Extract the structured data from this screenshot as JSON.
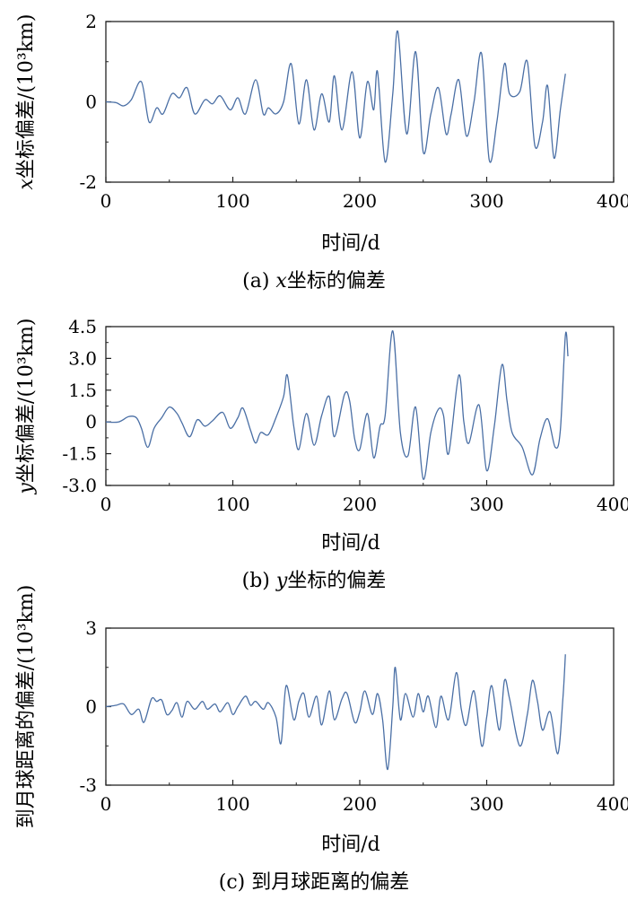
{
  "chart_data": [
    {
      "type": "line",
      "caption": "(a) x坐标的偏差",
      "caption_prefix": "(a) ",
      "caption_var": "x",
      "caption_suffix": "坐标的偏差",
      "xlabel": "时间/d",
      "ylabel": "x坐标偏差/(10³km)",
      "ylabel_var": "x",
      "ylabel_rest": "坐标偏差/(10³km)",
      "xlim": [
        0,
        400
      ],
      "ylim": [
        -2,
        2
      ],
      "xticks": [
        "0",
        "100",
        "200",
        "300",
        "400"
      ],
      "yticks": [
        "-2",
        "0",
        "2"
      ],
      "yticks_values": [
        -2,
        0,
        2
      ],
      "line_color": "#4a6fa5",
      "points": [
        [
          0,
          0
        ],
        [
          8,
          -0.02
        ],
        [
          14,
          -0.1
        ],
        [
          20,
          0.05
        ],
        [
          28,
          0.5
        ],
        [
          34,
          -0.5
        ],
        [
          40,
          -0.15
        ],
        [
          45,
          -0.3
        ],
        [
          52,
          0.2
        ],
        [
          58,
          0.1
        ],
        [
          64,
          0.35
        ],
        [
          70,
          -0.3
        ],
        [
          78,
          0.05
        ],
        [
          84,
          -0.05
        ],
        [
          90,
          0.15
        ],
        [
          98,
          -0.2
        ],
        [
          104,
          0.1
        ],
        [
          110,
          -0.3
        ],
        [
          118,
          0.55
        ],
        [
          124,
          -0.3
        ],
        [
          128,
          -0.15
        ],
        [
          134,
          -0.3
        ],
        [
          140,
          0.0
        ],
        [
          146,
          0.95
        ],
        [
          152,
          -0.55
        ],
        [
          158,
          0.55
        ],
        [
          164,
          -0.7
        ],
        [
          170,
          0.2
        ],
        [
          176,
          -0.5
        ],
        [
          180,
          0.65
        ],
        [
          186,
          -0.7
        ],
        [
          194,
          0.75
        ],
        [
          200,
          -0.9
        ],
        [
          206,
          0.5
        ],
        [
          211,
          -0.2
        ],
        [
          214,
          0.75
        ],
        [
          220,
          -1.5
        ],
        [
          226,
          0.2
        ],
        [
          230,
          1.75
        ],
        [
          237,
          -0.8
        ],
        [
          244,
          1.25
        ],
        [
          250,
          -1.25
        ],
        [
          256,
          -0.3
        ],
        [
          262,
          0.35
        ],
        [
          268,
          -0.8
        ],
        [
          272,
          -0.3
        ],
        [
          278,
          0.55
        ],
        [
          284,
          -0.85
        ],
        [
          290,
          0.0
        ],
        [
          296,
          1.2
        ],
        [
          302,
          -1.45
        ],
        [
          308,
          -0.5
        ],
        [
          314,
          0.95
        ],
        [
          318,
          0.2
        ],
        [
          326,
          0.25
        ],
        [
          332,
          1.0
        ],
        [
          338,
          -1.1
        ],
        [
          344,
          -0.5
        ],
        [
          348,
          0.4
        ],
        [
          353,
          -1.4
        ],
        [
          358,
          -0.2
        ],
        [
          362,
          0.7
        ]
      ]
    },
    {
      "type": "line",
      "caption": "(b) y坐标的偏差",
      "caption_prefix": "(b) ",
      "caption_var": "y",
      "caption_suffix": "坐标的偏差",
      "xlabel": "时间/d",
      "ylabel": "y坐标偏差/(10³km)",
      "ylabel_var": "y",
      "ylabel_rest": "坐标偏差/(10³km)",
      "xlim": [
        0,
        400
      ],
      "ylim": [
        -3.0,
        4.5
      ],
      "xticks": [
        "0",
        "100",
        "200",
        "300",
        "400"
      ],
      "yticks": [
        "-3.0",
        "-1.5",
        "0",
        "1.5",
        "3.0",
        "4.5"
      ],
      "yticks_values": [
        -3.0,
        -1.5,
        0,
        1.5,
        3.0,
        4.5
      ],
      "line_color": "#4a6fa5",
      "points": [
        [
          0,
          0
        ],
        [
          10,
          0
        ],
        [
          18,
          0.25
        ],
        [
          24,
          0.2
        ],
        [
          28,
          -0.3
        ],
        [
          33,
          -1.2
        ],
        [
          38,
          -0.3
        ],
        [
          44,
          0.2
        ],
        [
          50,
          0.7
        ],
        [
          56,
          0.4
        ],
        [
          60,
          -0.05
        ],
        [
          66,
          -0.7
        ],
        [
          72,
          0.1
        ],
        [
          78,
          -0.2
        ],
        [
          84,
          0.05
        ],
        [
          92,
          0.45
        ],
        [
          98,
          -0.3
        ],
        [
          104,
          0.2
        ],
        [
          108,
          0.65
        ],
        [
          114,
          -0.4
        ],
        [
          118,
          -1.0
        ],
        [
          122,
          -0.5
        ],
        [
          128,
          -0.6
        ],
        [
          134,
          0.2
        ],
        [
          140,
          1.2
        ],
        [
          143,
          2.2
        ],
        [
          148,
          -0.2
        ],
        [
          152,
          -1.3
        ],
        [
          158,
          0.4
        ],
        [
          164,
          -1.1
        ],
        [
          170,
          0.3
        ],
        [
          176,
          1.2
        ],
        [
          180,
          -0.7
        ],
        [
          188,
          1.3
        ],
        [
          192,
          1.0
        ],
        [
          196,
          -0.8
        ],
        [
          200,
          -1.3
        ],
        [
          206,
          0.4
        ],
        [
          211,
          -1.7
        ],
        [
          216,
          -0.2
        ],
        [
          220,
          0.3
        ],
        [
          226,
          4.3
        ],
        [
          232,
          -0.5
        ],
        [
          238,
          -1.6
        ],
        [
          244,
          0.7
        ],
        [
          250,
          -2.7
        ],
        [
          256,
          -0.5
        ],
        [
          262,
          0.6
        ],
        [
          266,
          0.3
        ],
        [
          270,
          -1.5
        ],
        [
          278,
          2.2
        ],
        [
          282,
          0.0
        ],
        [
          286,
          -1.0
        ],
        [
          294,
          0.8
        ],
        [
          300,
          -2.3
        ],
        [
          306,
          -0.2
        ],
        [
          312,
          2.7
        ],
        [
          316,
          1.0
        ],
        [
          320,
          -0.5
        ],
        [
          328,
          -1.2
        ],
        [
          336,
          -2.5
        ],
        [
          342,
          -0.8
        ],
        [
          348,
          0.15
        ],
        [
          354,
          -1.2
        ],
        [
          358,
          -0.4
        ],
        [
          362,
          4.1
        ],
        [
          364,
          3.1
        ]
      ]
    },
    {
      "type": "line",
      "caption": "(c) 到月球距离的偏差",
      "caption_prefix": "(c) ",
      "caption_var": "",
      "caption_suffix": "到月球距离的偏差",
      "xlabel": "时间/d",
      "ylabel": "到月球距离的偏差/(10³km)",
      "ylabel_var": "",
      "ylabel_rest": "到月球距离的偏差/(10³km)",
      "xlim": [
        0,
        400
      ],
      "ylim": [
        -3,
        3
      ],
      "xticks": [
        "0",
        "100",
        "200",
        "300",
        "400"
      ],
      "yticks": [
        "-3",
        "0",
        "3"
      ],
      "yticks_values": [
        -3,
        0,
        3
      ],
      "line_color": "#4a6fa5",
      "points": [
        [
          0,
          0
        ],
        [
          8,
          0.05
        ],
        [
          14,
          0.1
        ],
        [
          20,
          -0.3
        ],
        [
          26,
          -0.1
        ],
        [
          30,
          -0.6
        ],
        [
          36,
          0.3
        ],
        [
          40,
          0.2
        ],
        [
          44,
          0.25
        ],
        [
          48,
          -0.3
        ],
        [
          52,
          -0.15
        ],
        [
          56,
          0.15
        ],
        [
          60,
          -0.4
        ],
        [
          64,
          0.2
        ],
        [
          70,
          -0.1
        ],
        [
          76,
          0.2
        ],
        [
          80,
          -0.1
        ],
        [
          86,
          0.1
        ],
        [
          90,
          -0.2
        ],
        [
          96,
          0.15
        ],
        [
          100,
          -0.3
        ],
        [
          104,
          0.0
        ],
        [
          110,
          0.4
        ],
        [
          114,
          0.05
        ],
        [
          118,
          0.2
        ],
        [
          124,
          -0.1
        ],
        [
          128,
          0.15
        ],
        [
          134,
          -0.4
        ],
        [
          138,
          -1.4
        ],
        [
          142,
          0.8
        ],
        [
          148,
          -0.5
        ],
        [
          152,
          0.2
        ],
        [
          156,
          0.5
        ],
        [
          160,
          -0.4
        ],
        [
          166,
          0.4
        ],
        [
          170,
          -0.7
        ],
        [
          176,
          0.6
        ],
        [
          180,
          -0.5
        ],
        [
          186,
          0.3
        ],
        [
          190,
          0.5
        ],
        [
          196,
          -0.6
        ],
        [
          200,
          -0.2
        ],
        [
          204,
          0.6
        ],
        [
          210,
          -0.3
        ],
        [
          214,
          0.5
        ],
        [
          218,
          -0.5
        ],
        [
          222,
          -2.4
        ],
        [
          226,
          0.0
        ],
        [
          228,
          1.5
        ],
        [
          232,
          -0.5
        ],
        [
          236,
          0.5
        ],
        [
          242,
          -0.4
        ],
        [
          246,
          0.5
        ],
        [
          250,
          -0.2
        ],
        [
          254,
          0.4
        ],
        [
          260,
          -0.8
        ],
        [
          264,
          0.4
        ],
        [
          270,
          -0.5
        ],
        [
          276,
          1.3
        ],
        [
          280,
          -0.1
        ],
        [
          284,
          -0.7
        ],
        [
          290,
          0.6
        ],
        [
          296,
          -1.5
        ],
        [
          300,
          -0.4
        ],
        [
          304,
          0.8
        ],
        [
          310,
          -0.9
        ],
        [
          314,
          1.0
        ],
        [
          318,
          0.3
        ],
        [
          326,
          -1.5
        ],
        [
          332,
          -0.3
        ],
        [
          336,
          1.0
        ],
        [
          340,
          0.2
        ],
        [
          344,
          -0.9
        ],
        [
          350,
          -0.2
        ],
        [
          356,
          -1.8
        ],
        [
          360,
          0.3
        ],
        [
          362,
          2.0
        ]
      ]
    }
  ]
}
